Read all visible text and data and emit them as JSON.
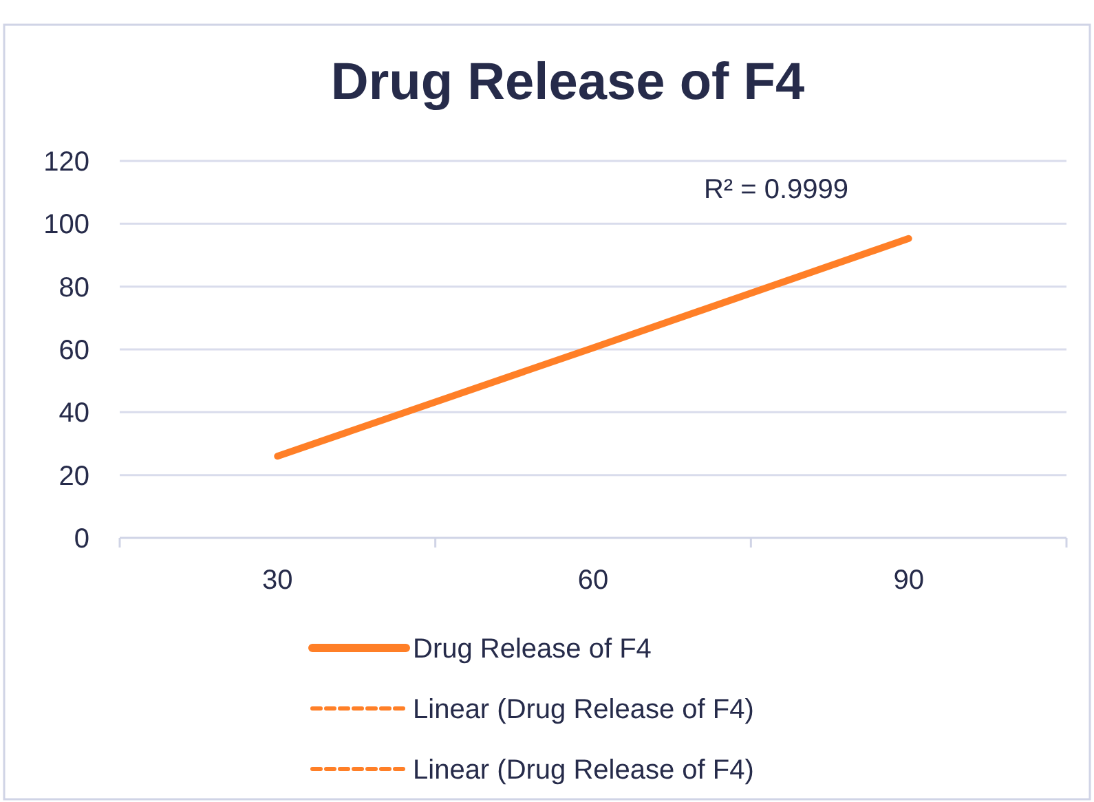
{
  "chart_data": {
    "type": "line",
    "title": "Drug Release of F4",
    "categories": [
      "30",
      "60",
      "90"
    ],
    "series": [
      {
        "name": "Drug Release of F4",
        "color": "#ff7f27",
        "values": [
          26,
          60.5,
          95.3
        ],
        "line_style": "solid"
      },
      {
        "name": "Linear (Drug Release of F4)",
        "color": "#ff7f27",
        "values": [
          null,
          null,
          null
        ],
        "line_style": "dashed"
      },
      {
        "name": "Linear (Drug Release of F4)",
        "color": "#ff7f27",
        "values": [
          null,
          null,
          null
        ],
        "line_style": "dashed"
      }
    ],
    "ylim": [
      0,
      120
    ],
    "yticks": [
      0,
      20,
      40,
      60,
      80,
      100,
      120
    ],
    "grid": "y",
    "legend": "bottom",
    "marker": "none",
    "annotations": [
      "R² = 0.9999"
    ]
  }
}
